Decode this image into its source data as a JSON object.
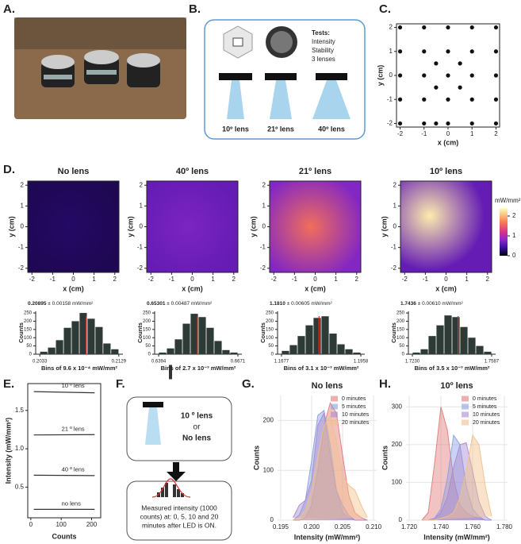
{
  "panel_labels": [
    "A.",
    "B.",
    "C.",
    "D.",
    "E.",
    "F.",
    "G.",
    "H."
  ],
  "diagram_b": {
    "tests_title": "Tests:",
    "tests": [
      "Intensity",
      "Stability",
      "3 lenses"
    ],
    "lenses": [
      "10º lens",
      "21º lens",
      "40º lens"
    ]
  },
  "diagram_f": {
    "options": [
      "10 º lens",
      "or",
      "No lens"
    ],
    "caption": [
      "Measured intensity (1000",
      "counts) at: 0, 5, 10 and 20",
      "minutes after LED is ON."
    ]
  },
  "chart_data": [
    {
      "type": "scatter",
      "xlabel": "x (cm)",
      "ylabel": "y (cm)",
      "color": "#111111",
      "x": [
        -2,
        -1,
        0,
        1,
        2,
        -2,
        -1,
        0,
        1,
        2,
        -0.5,
        0.5,
        -2,
        -1,
        0,
        1,
        2,
        -0.5,
        0.5,
        -2,
        -1,
        0,
        1,
        2,
        -2,
        -1,
        -0.5,
        0,
        1,
        2
      ],
      "values": [
        2,
        2,
        2,
        2,
        2,
        1,
        1,
        1,
        1,
        1,
        0.5,
        0.5,
        0,
        0,
        0,
        0,
        0,
        -0.5,
        -0.5,
        -1,
        -1,
        -1,
        -1,
        -1,
        -2,
        -2,
        -2,
        -2,
        -2,
        -2
      ],
      "xlim": [
        -2.15,
        2.15
      ],
      "ylim": [
        -2.15,
        2.15
      ],
      "xticks": [
        -2,
        -1,
        0,
        1,
        2
      ],
      "yticks": [
        -2,
        -1,
        0,
        1,
        2
      ]
    },
    {
      "type": "heatmap",
      "title": "No lens",
      "xlabel": "x (cm)",
      "ylabel": "y (cm)",
      "peak": 0.25,
      "edge": 0.2,
      "xlim": [
        -2.2,
        2.2
      ],
      "ylim": [
        -2.2,
        2.2
      ],
      "xticks": [
        -2,
        -1,
        0,
        1,
        2
      ],
      "yticks": [
        -2,
        -1,
        0,
        1,
        2
      ]
    },
    {
      "type": "heatmap",
      "title": "40º lens",
      "xlabel": "x (cm)",
      "ylabel": "y (cm)",
      "peak": 0.72,
      "edge": 0.6,
      "xlim": [
        -2.2,
        2.2
      ],
      "ylim": [
        -2.2,
        2.2
      ],
      "xticks": [
        -2,
        -1,
        0,
        1,
        2
      ],
      "yticks": [
        -2,
        -1,
        0,
        1,
        2
      ]
    },
    {
      "type": "heatmap",
      "title": "21º lens",
      "xlabel": "x (cm)",
      "ylabel": "y (cm)",
      "peak": 1.6,
      "edge": 0.75,
      "xlim": [
        -2.2,
        2.2
      ],
      "ylim": [
        -2.2,
        2.2
      ],
      "xticks": [
        -2,
        -1,
        0,
        1,
        2
      ],
      "yticks": [
        -2,
        -1,
        0,
        1,
        2
      ]
    },
    {
      "type": "heatmap",
      "title": "10º lens",
      "xlabel": "x (cm)",
      "ylabel": "y (cm)",
      "peak": 2.3,
      "edge": 0.6,
      "xlim": [
        -2.2,
        2.2
      ],
      "ylim": [
        -2.2,
        2.2
      ],
      "xticks": [
        -2,
        -1,
        0,
        1,
        2
      ],
      "yticks": [
        -2,
        -1,
        0,
        1,
        2
      ],
      "colorbar": {
        "title": "mW/mm²",
        "lim": [
          0,
          2.4
        ],
        "ticks": [
          0,
          1,
          2
        ]
      }
    },
    {
      "type": "histogram",
      "mean": 0.20895,
      "sd_label": " ± 0.00158 mW/mm²",
      "xlabel": "Bins of 9.6 x 10⁻⁴ mW/mm²",
      "ylabel": "Counts",
      "color": "#2d3a35",
      "bins": [
        0.2033,
        0.20426,
        0.20522,
        0.20618,
        0.20714,
        0.2081,
        0.20906,
        0.21002,
        0.21098,
        0.21194,
        0.2129
      ],
      "values": [
        15,
        40,
        85,
        160,
        200,
        250,
        215,
        165,
        65,
        30
      ],
      "xlim": [
        0.2028,
        0.2134
      ],
      "xticks": [
        0.2033,
        0.2129
      ],
      "ylim": [
        0,
        260
      ],
      "yticks": [
        0,
        50,
        100,
        150,
        200,
        250
      ]
    },
    {
      "type": "histogram",
      "mean": 0.65301,
      "sd_label": " ± 0.00487 mW/mm²",
      "xlabel": "Bins of 2.7 x 10⁻³ mW/mm²",
      "ylabel": "Counts",
      "color": "#2d3a35",
      "bins": [
        0.6394,
        0.64217,
        0.64494,
        0.64771,
        0.65048,
        0.65325,
        0.65602,
        0.65879,
        0.66156,
        0.66433,
        0.6671
      ],
      "values": [
        10,
        35,
        90,
        185,
        245,
        225,
        160,
        80,
        25,
        10
      ],
      "xlim": [
        0.638,
        0.6685
      ],
      "xticks": [
        0.6394,
        0.6671
      ],
      "ylim": [
        0,
        260
      ],
      "yticks": [
        0,
        50,
        100,
        150,
        200,
        250
      ]
    },
    {
      "type": "histogram",
      "mean": {
        "value": 1.181,
        "label": "1.1810"
      },
      "sd_label": " ± 0.00605 mW/mm²",
      "xlabel": "Bins of 3.1 x 10⁻³ mW/mm²",
      "ylabel": "Counts",
      "color": "#2d3a35",
      "bins": [
        1.1677,
        1.17051,
        1.17332,
        1.17613,
        1.17894,
        1.18175,
        1.18456,
        1.18737,
        1.19018,
        1.19299,
        1.1958
      ],
      "values": [
        20,
        55,
        110,
        175,
        220,
        230,
        125,
        60,
        30,
        10
      ],
      "xlim": [
        1.1663,
        1.1972
      ],
      "xticks": [
        1.1677,
        1.1958
      ],
      "ylim": [
        0,
        260
      ],
      "yticks": [
        0,
        50,
        100,
        150,
        200,
        250
      ]
    },
    {
      "type": "histogram",
      "mean": 1.7436,
      "sd_label": " ± 0.00610 mW/mm²",
      "xlabel": "Bins of 3.5 x 10⁻³ mW/mm²",
      "ylabel": "Counts",
      "color": "#2d3a35",
      "bins": [
        1.723,
        1.72657,
        1.73014,
        1.73371,
        1.73728,
        1.74085,
        1.74442,
        1.74799,
        1.75156,
        1.75513,
        1.7587
      ],
      "values": [
        10,
        30,
        110,
        175,
        235,
        225,
        165,
        100,
        50,
        15
      ],
      "xlim": [
        1.7212,
        1.7605
      ],
      "xticks": [
        {
          "value": 1.723,
          "label": "1.7230"
        },
        1.7587
      ],
      "ylim": [
        0,
        260
      ],
      "yticks": [
        0,
        50,
        100,
        150,
        200,
        250
      ]
    },
    {
      "type": "line",
      "xlabel": "Counts",
      "ylabel": "Intensity (mW/mm²)",
      "x": [
        10,
        210
      ],
      "series": [
        {
          "name": "10 º lens",
          "color": "#333333",
          "values": [
            1.745,
            1.73
          ]
        },
        {
          "name": "21 º lens",
          "color": "#333333",
          "values": [
            1.18,
            1.185
          ]
        },
        {
          "name": "40 º lens",
          "color": "#333333",
          "values": [
            0.655,
            0.65
          ]
        },
        {
          "name": "no lens",
          "color": "#333333",
          "values": [
            0.21,
            0.21
          ]
        }
      ],
      "xlim": [
        -10,
        230
      ],
      "xticks": [
        0,
        100,
        200
      ],
      "ylim": [
        0.1,
        1.85
      ],
      "yticks": [
        0.5,
        {
          "value": 1.0,
          "label": "1.0"
        },
        1.5
      ]
    },
    {
      "type": "area",
      "title": "No lens",
      "xlabel": "Intensity (mW/mm²)",
      "ylabel": "Counts",
      "x": [
        0.197,
        0.198,
        0.199,
        0.2,
        0.201,
        0.202,
        0.203,
        0.204,
        0.205,
        0.206,
        0.207,
        0.208,
        0.209
      ],
      "series": [
        {
          "name": "0 minutes",
          "color": "#e07a7a",
          "values": [
            0,
            0,
            5,
            30,
            100,
            190,
            235,
            215,
            130,
            50,
            15,
            5,
            0
          ]
        },
        {
          "name": "5 minutes",
          "color": "#8a9ee0",
          "values": [
            0,
            10,
            40,
            120,
            210,
            220,
            150,
            60,
            15,
            5,
            0,
            0,
            0
          ]
        },
        {
          "name": "10 minutes",
          "color": "#a98ad0",
          "values": [
            5,
            30,
            40,
            80,
            190,
            215,
            130,
            60,
            30,
            10,
            0,
            0,
            0
          ]
        },
        {
          "name": "20 minutes",
          "color": "#f2c08a",
          "values": [
            0,
            5,
            20,
            60,
            130,
            190,
            210,
            160,
            90,
            70,
            60,
            30,
            5
          ]
        }
      ],
      "xlim": [
        0.1945,
        0.2105
      ],
      "xticks": [
        0.195,
        {
          "value": 0.2,
          "label": "0.200"
        },
        0.205,
        {
          "value": 0.21,
          "label": "0.210"
        }
      ],
      "ylim": [
        0,
        250
      ],
      "yticks": [
        0,
        100,
        200
      ],
      "grid": true,
      "legend": "top-right"
    },
    {
      "type": "area",
      "title": "10º lens",
      "xlabel": "Intensity (mW/mm²)",
      "ylabel": "Counts",
      "x": [
        1.728,
        1.732,
        1.736,
        1.74,
        1.744,
        1.748,
        1.752,
        1.756,
        1.76,
        1.764,
        1.768,
        1.772
      ],
      "series": [
        {
          "name": "0 minutes",
          "color": "#e07a7a",
          "values": [
            0,
            20,
            150,
            300,
            240,
            110,
            40,
            20,
            10,
            5,
            0,
            0
          ]
        },
        {
          "name": "5 minutes",
          "color": "#8a9ee0",
          "values": [
            0,
            0,
            5,
            30,
            110,
            225,
            200,
            90,
            30,
            10,
            0,
            0
          ]
        },
        {
          "name": "10 minutes",
          "color": "#a98ad0",
          "values": [
            0,
            0,
            5,
            20,
            60,
            140,
            200,
            205,
            130,
            50,
            10,
            0
          ]
        },
        {
          "name": "20 minutes",
          "color": "#f2c08a",
          "values": [
            0,
            0,
            0,
            5,
            10,
            20,
            60,
            130,
            225,
            200,
            90,
            10
          ]
        }
      ],
      "xlim": [
        1.718,
        1.782
      ],
      "xticks": [
        {
          "value": 1.72,
          "label": "1.720"
        },
        {
          "value": 1.74,
          "label": "1.740"
        },
        {
          "value": 1.76,
          "label": "1.760"
        },
        {
          "value": 1.78,
          "label": "1.780"
        }
      ],
      "ylim": [
        0,
        330
      ],
      "yticks": [
        0,
        100,
        200,
        300
      ],
      "grid": true,
      "legend": "top-right"
    }
  ]
}
